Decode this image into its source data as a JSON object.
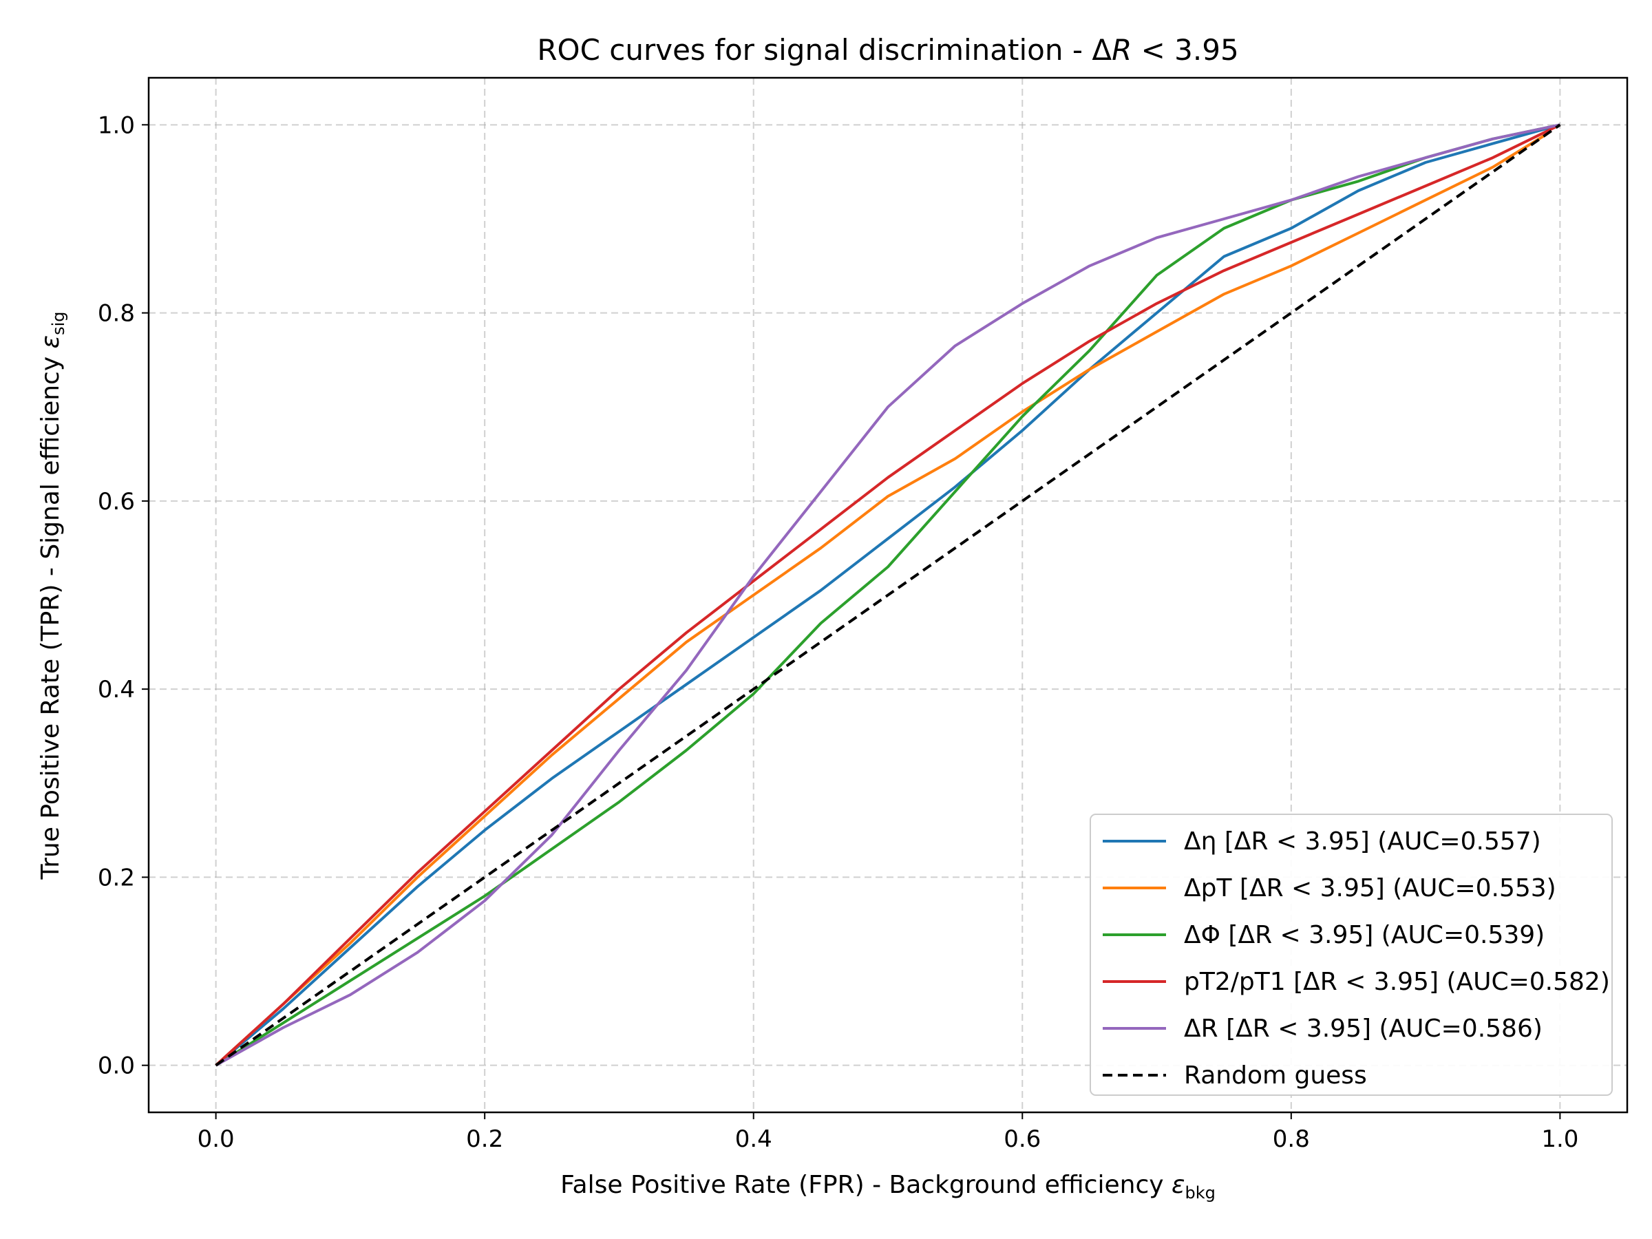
{
  "chart_data": {
    "type": "line",
    "title": {
      "prefix": "ROC curves for signal discrimination - ",
      "delta": "Δ",
      "var": "R",
      "rel": " < ",
      "value": "3.95"
    },
    "xlabel": {
      "text": "False Positive Rate (FPR) - Background efficiency ",
      "symbol": "ε",
      "sub": "bkg"
    },
    "ylabel": {
      "text": "True Positive Rate (TPR) - Signal efficiency ",
      "symbol": "ε",
      "sub": "sig"
    },
    "xlim": [
      -0.05,
      1.05
    ],
    "ylim": [
      -0.05,
      1.05
    ],
    "xticks": [
      0.0,
      0.2,
      0.4,
      0.6,
      0.8,
      1.0
    ],
    "yticks": [
      0.0,
      0.2,
      0.4,
      0.6,
      0.8,
      1.0
    ],
    "xtick_labels": [
      "0.0",
      "0.2",
      "0.4",
      "0.6",
      "0.8",
      "1.0"
    ],
    "ytick_labels": [
      "0.0",
      "0.2",
      "0.4",
      "0.6",
      "0.8",
      "1.0"
    ],
    "grid": true,
    "legend_position": "lower right",
    "series": [
      {
        "name": "Δη [ΔR < 3.95] (AUC=0.557)",
        "color": "#1f77b4",
        "points": [
          [
            0,
            0
          ],
          [
            0.05,
            0.06
          ],
          [
            0.1,
            0.125
          ],
          [
            0.15,
            0.19
          ],
          [
            0.2,
            0.25
          ],
          [
            0.25,
            0.305
          ],
          [
            0.3,
            0.355
          ],
          [
            0.35,
            0.405
          ],
          [
            0.4,
            0.455
          ],
          [
            0.45,
            0.505
          ],
          [
            0.5,
            0.56
          ],
          [
            0.55,
            0.615
          ],
          [
            0.6,
            0.675
          ],
          [
            0.65,
            0.74
          ],
          [
            0.7,
            0.8
          ],
          [
            0.75,
            0.86
          ],
          [
            0.8,
            0.89
          ],
          [
            0.85,
            0.93
          ],
          [
            0.9,
            0.96
          ],
          [
            0.95,
            0.98
          ],
          [
            1.0,
            1.0
          ]
        ]
      },
      {
        "name": "ΔpT [ΔR < 3.95] (AUC=0.553)",
        "color": "#ff7f0e",
        "points": [
          [
            0,
            0
          ],
          [
            0.05,
            0.065
          ],
          [
            0.1,
            0.13
          ],
          [
            0.15,
            0.2
          ],
          [
            0.2,
            0.265
          ],
          [
            0.25,
            0.33
          ],
          [
            0.3,
            0.39
          ],
          [
            0.35,
            0.45
          ],
          [
            0.4,
            0.5
          ],
          [
            0.45,
            0.55
          ],
          [
            0.5,
            0.605
          ],
          [
            0.55,
            0.645
          ],
          [
            0.6,
            0.695
          ],
          [
            0.65,
            0.74
          ],
          [
            0.7,
            0.78
          ],
          [
            0.75,
            0.82
          ],
          [
            0.8,
            0.85
          ],
          [
            0.85,
            0.885
          ],
          [
            0.9,
            0.92
          ],
          [
            0.95,
            0.955
          ],
          [
            0.99,
            0.99
          ]
        ]
      },
      {
        "name": "ΔΦ [ΔR < 3.95] (AUC=0.539)",
        "color": "#2ca02c",
        "points": [
          [
            0,
            0
          ],
          [
            0.05,
            0.045
          ],
          [
            0.1,
            0.09
          ],
          [
            0.15,
            0.135
          ],
          [
            0.2,
            0.18
          ],
          [
            0.25,
            0.23
          ],
          [
            0.3,
            0.28
          ],
          [
            0.35,
            0.335
          ],
          [
            0.4,
            0.395
          ],
          [
            0.45,
            0.47
          ],
          [
            0.5,
            0.53
          ],
          [
            0.55,
            0.61
          ],
          [
            0.6,
            0.69
          ],
          [
            0.65,
            0.76
          ],
          [
            0.7,
            0.84
          ],
          [
            0.75,
            0.89
          ],
          [
            0.8,
            0.92
          ],
          [
            0.85,
            0.94
          ],
          [
            0.9,
            0.965
          ],
          [
            0.95,
            0.985
          ],
          [
            1.0,
            1.0
          ]
        ]
      },
      {
        "name": "pT2/pT1 [ΔR < 3.95] (AUC=0.582)",
        "color": "#d62728",
        "points": [
          [
            0,
            0
          ],
          [
            0.05,
            0.065
          ],
          [
            0.1,
            0.135
          ],
          [
            0.15,
            0.205
          ],
          [
            0.2,
            0.27
          ],
          [
            0.25,
            0.335
          ],
          [
            0.3,
            0.4
          ],
          [
            0.35,
            0.46
          ],
          [
            0.4,
            0.515
          ],
          [
            0.45,
            0.57
          ],
          [
            0.5,
            0.625
          ],
          [
            0.55,
            0.675
          ],
          [
            0.6,
            0.725
          ],
          [
            0.65,
            0.77
          ],
          [
            0.7,
            0.81
          ],
          [
            0.75,
            0.845
          ],
          [
            0.8,
            0.875
          ],
          [
            0.85,
            0.905
          ],
          [
            0.9,
            0.935
          ],
          [
            0.95,
            0.965
          ],
          [
            1.0,
            1.0
          ]
        ]
      },
      {
        "name": "ΔR [ΔR < 3.95] (AUC=0.586)",
        "color": "#9467bd",
        "points": [
          [
            0,
            0
          ],
          [
            0.05,
            0.04
          ],
          [
            0.1,
            0.075
          ],
          [
            0.15,
            0.12
          ],
          [
            0.2,
            0.175
          ],
          [
            0.25,
            0.245
          ],
          [
            0.3,
            0.335
          ],
          [
            0.35,
            0.42
          ],
          [
            0.4,
            0.52
          ],
          [
            0.45,
            0.61
          ],
          [
            0.5,
            0.7
          ],
          [
            0.55,
            0.765
          ],
          [
            0.6,
            0.81
          ],
          [
            0.65,
            0.85
          ],
          [
            0.7,
            0.88
          ],
          [
            0.75,
            0.9
          ],
          [
            0.8,
            0.92
          ],
          [
            0.85,
            0.945
          ],
          [
            0.9,
            0.965
          ],
          [
            0.95,
            0.985
          ],
          [
            1.0,
            1.0
          ]
        ]
      },
      {
        "name": "Random guess",
        "color": "#000000",
        "dashed": true,
        "points": [
          [
            0,
            0
          ],
          [
            1,
            1
          ]
        ]
      }
    ]
  }
}
